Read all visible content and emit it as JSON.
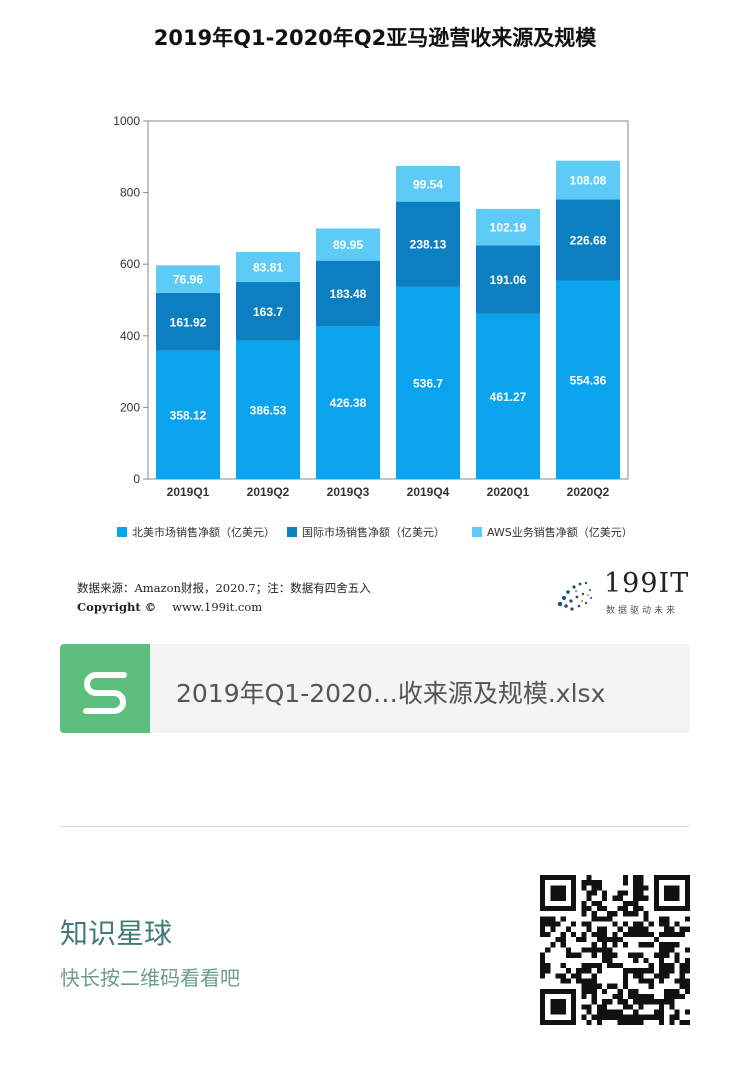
{
  "chart_data": {
    "type": "bar",
    "stacked": true,
    "title": "2019年Q1-2020年Q2亚马逊营收来源及规模",
    "categories": [
      "2019Q1",
      "2019Q2",
      "2019Q3",
      "2019Q4",
      "2020Q1",
      "2020Q2"
    ],
    "series": [
      {
        "name": "北美市场销售净额（亿美元）",
        "values": [
          358.12,
          386.53,
          426.38,
          536.7,
          461.27,
          554.36
        ],
        "labels": [
          "358.12",
          "386.53",
          "426.38",
          "536.7",
          "461.27",
          "554.36"
        ],
        "color": "#0aa3ee"
      },
      {
        "name": "国际市场销售净额（亿美元）",
        "values": [
          161.92,
          163.7,
          183.48,
          238.13,
          191.06,
          226.68
        ],
        "labels": [
          "161.92",
          "163.7",
          "183.48",
          "238.13",
          "191.06",
          "226.68"
        ],
        "color": "#0c7fc1"
      },
      {
        "name": "AWS业务销售净额（亿美元）",
        "values": [
          76.96,
          83.81,
          89.95,
          99.54,
          102.19,
          108.08
        ],
        "labels": [
          "76.96",
          "83.81",
          "89.95",
          "99.54",
          "102.19",
          "108.08"
        ],
        "color": "#5ecbf6"
      }
    ],
    "ylim": [
      0,
      1000
    ],
    "yticks": [
      0,
      200,
      400,
      600,
      800,
      1000
    ],
    "ytick_labels": [
      "0",
      "200",
      "400",
      "600",
      "800",
      "1000"
    ],
    "grid": false,
    "legend_position": "bottom"
  },
  "footer": {
    "source": "数据来源：Amazon财报，2020.7；注：数据有四舍五入",
    "copyright_label": "Copyright ©",
    "copyright_url": "www.199it.com",
    "brand_name": "199IT",
    "brand_tagline": "数据驱动未来"
  },
  "attachment": {
    "file_name": "2019年Q1-2020…收来源及规模.xlsx",
    "icon": "spreadsheet-s-icon",
    "icon_color": "#5dbf7d"
  },
  "promo": {
    "title": "知识星球",
    "subtitle": "快长按二维码看看吧"
  }
}
